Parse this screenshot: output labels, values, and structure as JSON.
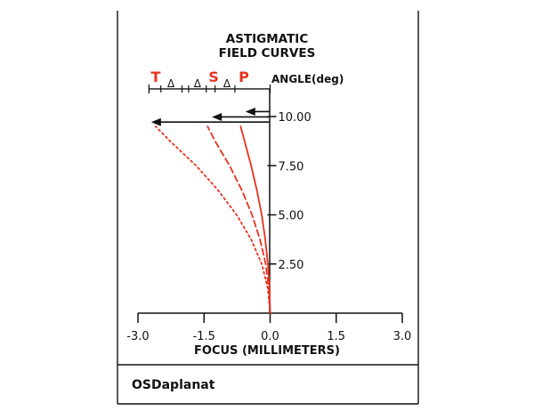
{
  "chart_data": {
    "type": "line",
    "title_lines": [
      "ASTIGMATIC",
      "FIELD CURVES"
    ],
    "xlabel": "FOCUS (MILLIMETERS)",
    "ylabel": "ANGLE(deg)",
    "xlim": [
      -3.0,
      3.0
    ],
    "ylim": [
      0,
      11.45
    ],
    "x_ticks": [
      {
        "value": -3.0,
        "label": "-3.0"
      },
      {
        "value": -1.5,
        "label": "-1.5"
      },
      {
        "value": 0.0,
        "label": "0.0"
      },
      {
        "value": 1.5,
        "label": "1.5"
      },
      {
        "value": 3.0,
        "label": "3.0"
      }
    ],
    "y_ticks": [
      {
        "value": 2.5,
        "label": "2.50"
      },
      {
        "value": 5.0,
        "label": "5.00"
      },
      {
        "value": 7.5,
        "label": "7.50"
      },
      {
        "value": 10.0,
        "label": "10.00"
      }
    ],
    "series": [
      {
        "name": "T",
        "style": "dotted",
        "color": "#e8321e",
        "points": [
          [
            0.0,
            0.0
          ],
          [
            -0.05,
            1.25
          ],
          [
            -0.19,
            2.5
          ],
          [
            -0.43,
            3.75
          ],
          [
            -0.76,
            5.0
          ],
          [
            -1.18,
            6.25
          ],
          [
            -1.68,
            7.5
          ],
          [
            -2.27,
            8.75
          ],
          [
            -2.6,
            9.5
          ]
        ]
      },
      {
        "name": "S",
        "style": "dashed",
        "color": "#e8321e",
        "points": [
          [
            0.0,
            0.0
          ],
          [
            -0.03,
            1.25
          ],
          [
            -0.1,
            2.5
          ],
          [
            -0.23,
            3.75
          ],
          [
            -0.41,
            5.0
          ],
          [
            -0.64,
            6.25
          ],
          [
            -0.92,
            7.5
          ],
          [
            -1.25,
            8.75
          ],
          [
            -1.42,
            9.5
          ]
        ]
      },
      {
        "name": "P",
        "style": "solid",
        "color": "#e8321e",
        "points": [
          [
            0.0,
            0.0
          ],
          [
            -0.01,
            1.25
          ],
          [
            -0.05,
            2.5
          ],
          [
            -0.11,
            3.75
          ],
          [
            -0.19,
            5.0
          ],
          [
            -0.3,
            6.25
          ],
          [
            -0.43,
            7.5
          ],
          [
            -0.58,
            8.75
          ],
          [
            -0.67,
            9.5
          ]
        ]
      }
    ],
    "arrows": [
      {
        "x_from": 0.0,
        "x_to": -2.7,
        "y": 9.72
      },
      {
        "x_from": 0.0,
        "x_to": -1.32,
        "y": 9.98
      },
      {
        "x_from": 0.0,
        "x_to": -0.56,
        "y": 10.25
      }
    ],
    "delta_label": "Δ",
    "delta_x": [
      -2.25,
      -1.65,
      -0.98
    ]
  },
  "footer": {
    "name": "OSDaplanat"
  },
  "colors": {
    "curves": "#e8321e",
    "axes": "#111111"
  }
}
